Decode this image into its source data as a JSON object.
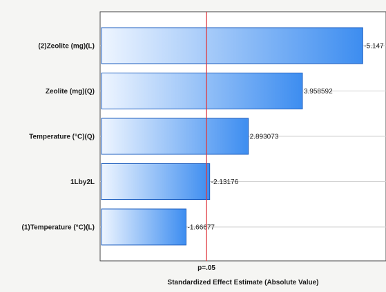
{
  "chart_data": {
    "type": "bar",
    "orientation": "horizontal",
    "categories": [
      "(2)Zeolite (mg)(L)",
      "Zeolite (mg)(Q)",
      "Temperature (°C)(Q)",
      "1Lby2L",
      "(1)Temperature (°C)(L)"
    ],
    "values": [
      5.147,
      3.958592,
      2.893073,
      2.13176,
      1.66677
    ],
    "value_labels": [
      "-5.147",
      "3.958592",
      "2.893073",
      "-2.13176",
      "-1.66677"
    ],
    "xlabel": "Standardized Effect Estimate (Absolute Value)",
    "xlim": [
      0,
      5.3
    ],
    "reference_line": {
      "value": 2.069,
      "label": "p=.05",
      "color": "#e0393e"
    },
    "grid": true,
    "colors": {
      "bar_light": "#eef5ff",
      "bar_dark": "#3d8df0",
      "bar_edge": "#1f5fbf"
    }
  }
}
